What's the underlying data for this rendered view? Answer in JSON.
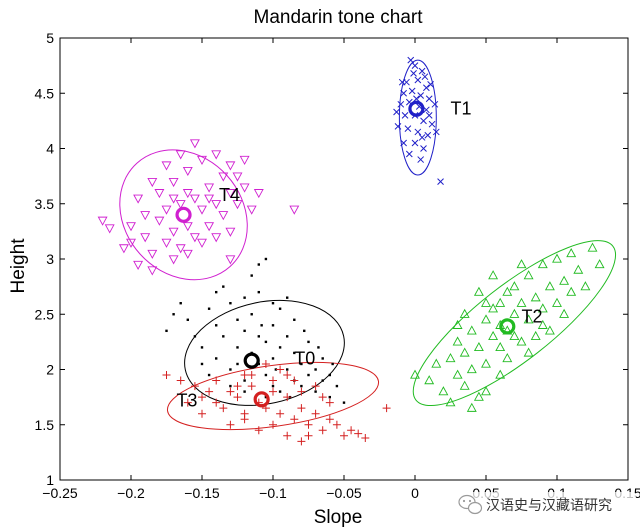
{
  "watermark": {
    "text": "汉语史与汉藏语研究"
  },
  "chart_data": {
    "type": "scatter",
    "title": "Mandarin tone chart",
    "xlabel": "Slope",
    "ylabel": "Height",
    "xlim": [
      -0.25,
      0.15
    ],
    "ylim": [
      1,
      5
    ],
    "xticks": [
      -0.25,
      -0.2,
      -0.15,
      -0.1,
      -0.05,
      0,
      0.05,
      0.1,
      0.15
    ],
    "xtick_labels": [
      "−0.25",
      "−0.2",
      "−0.15",
      "−0.1",
      "−0.05",
      "0",
      "0.05",
      "0.1",
      "0.15"
    ],
    "yticks": [
      1,
      1.5,
      2,
      2.5,
      3,
      3.5,
      4,
      4.5,
      5
    ],
    "ytick_labels": [
      "1",
      "1.5",
      "2",
      "2.5",
      "3",
      "3.5",
      "4",
      "4.5",
      "5"
    ],
    "grid": false,
    "series": [
      {
        "label": "T0",
        "marker": "dot",
        "color": "#000000",
        "centroid": [
          -0.115,
          2.08
        ],
        "ellipse": {
          "cx": -0.106,
          "cy": 2.15,
          "rx": 0.057,
          "ry": 0.46,
          "angle_deg": -12
        },
        "label_pos": [
          -0.085,
          2.1
        ],
        "points": [
          [
            -0.16,
            2.45
          ],
          [
            -0.155,
            2.3
          ],
          [
            -0.15,
            2.2
          ],
          [
            -0.145,
            2.55
          ],
          [
            -0.14,
            2.4
          ],
          [
            -0.14,
            2.1
          ],
          [
            -0.135,
            2.3
          ],
          [
            -0.13,
            2.0
          ],
          [
            -0.13,
            2.6
          ],
          [
            -0.125,
            2.2
          ],
          [
            -0.125,
            2.45
          ],
          [
            -0.12,
            2.35
          ],
          [
            -0.12,
            1.9
          ],
          [
            -0.115,
            2.5
          ],
          [
            -0.115,
            2.15
          ],
          [
            -0.11,
            2.3
          ],
          [
            -0.11,
            2.05
          ],
          [
            -0.11,
            2.7
          ],
          [
            -0.105,
            2.25
          ],
          [
            -0.105,
            1.95
          ],
          [
            -0.1,
            2.4
          ],
          [
            -0.1,
            2.1
          ],
          [
            -0.1,
            1.85
          ],
          [
            -0.095,
            2.2
          ],
          [
            -0.095,
            2.55
          ],
          [
            -0.09,
            2.0
          ],
          [
            -0.09,
            2.3
          ],
          [
            -0.085,
            1.9
          ],
          [
            -0.085,
            2.15
          ],
          [
            -0.08,
            1.85
          ],
          [
            -0.08,
            2.05
          ],
          [
            -0.075,
            1.95
          ],
          [
            -0.075,
            2.25
          ],
          [
            -0.07,
            1.8
          ],
          [
            -0.07,
            2.0
          ],
          [
            -0.065,
            1.9
          ],
          [
            -0.065,
            2.1
          ],
          [
            -0.06,
            1.75
          ],
          [
            -0.06,
            1.95
          ],
          [
            -0.055,
            1.85
          ],
          [
            -0.05,
            1.7
          ],
          [
            -0.115,
            2.85
          ],
          [
            -0.11,
            2.95
          ],
          [
            -0.105,
            3.0
          ],
          [
            -0.135,
            2.75
          ],
          [
            -0.17,
            2.5
          ],
          [
            -0.175,
            2.35
          ],
          [
            -0.165,
            2.6
          ],
          [
            -0.14,
            2.7
          ],
          [
            -0.12,
            2.65
          ],
          [
            -0.1,
            2.6
          ],
          [
            -0.09,
            2.65
          ],
          [
            -0.085,
            2.45
          ],
          [
            -0.095,
            1.8
          ],
          [
            -0.105,
            1.75
          ],
          [
            -0.12,
            1.8
          ],
          [
            -0.13,
            1.85
          ],
          [
            -0.145,
            1.95
          ],
          [
            -0.15,
            2.05
          ],
          [
            -0.125,
            2.05
          ],
          [
            -0.108,
            2.4
          ],
          [
            -0.098,
            2.0
          ],
          [
            -0.078,
            2.35
          ],
          [
            -0.068,
            2.2
          ],
          [
            -0.058,
            2.05
          ],
          [
            -0.088,
            1.75
          ]
        ]
      },
      {
        "label": "T1",
        "marker": "x",
        "color": "#2020c8",
        "centroid": [
          0.001,
          4.36
        ],
        "ellipse": {
          "cx": 0.002,
          "cy": 4.28,
          "rx": 0.013,
          "ry": 0.52,
          "angle_deg": 0
        },
        "label_pos": [
          0.025,
          4.36
        ],
        "points": [
          [
            -0.003,
            4.8
          ],
          [
            0.0,
            4.75
          ],
          [
            0.005,
            4.7
          ],
          [
            -0.006,
            4.6
          ],
          [
            0.002,
            4.62
          ],
          [
            0.008,
            4.55
          ],
          [
            -0.008,
            4.5
          ],
          [
            -0.002,
            4.52
          ],
          [
            0.004,
            4.48
          ],
          [
            0.01,
            4.45
          ],
          [
            -0.01,
            4.4
          ],
          [
            -0.004,
            4.42
          ],
          [
            0.003,
            4.38
          ],
          [
            0.008,
            4.35
          ],
          [
            -0.007,
            4.3
          ],
          [
            0.0,
            4.3
          ],
          [
            0.006,
            4.25
          ],
          [
            0.012,
            4.22
          ],
          [
            -0.012,
            4.2
          ],
          [
            -0.005,
            4.18
          ],
          [
            0.002,
            4.15
          ],
          [
            0.009,
            4.12
          ],
          [
            -0.008,
            4.05
          ],
          [
            0.0,
            4.05
          ],
          [
            0.006,
            4.0
          ],
          [
            -0.004,
            3.95
          ],
          [
            0.004,
            3.9
          ],
          [
            0.01,
            4.3
          ],
          [
            0.014,
            4.4
          ],
          [
            -0.009,
            4.6
          ],
          [
            0.007,
            4.65
          ],
          [
            0.015,
            4.15
          ],
          [
            0.018,
            3.7
          ],
          [
            -0.001,
            4.68
          ],
          [
            0.011,
            4.58
          ],
          [
            -0.013,
            4.33
          ],
          [
            0.001,
            4.45
          ],
          [
            0.005,
            4.1
          ]
        ]
      },
      {
        "label": "T2",
        "marker": "triangle-up",
        "color": "#22bb22",
        "centroid": [
          0.065,
          2.39
        ],
        "ellipse": {
          "cx": 0.07,
          "cy": 2.42,
          "rx": 0.088,
          "ry": 0.34,
          "angle_deg": -38
        },
        "label_pos": [
          0.075,
          2.48
        ],
        "points": [
          [
            0.0,
            1.95
          ],
          [
            0.01,
            1.9
          ],
          [
            0.015,
            2.05
          ],
          [
            0.02,
            1.8
          ],
          [
            0.025,
            2.1
          ],
          [
            0.03,
            1.95
          ],
          [
            0.03,
            2.25
          ],
          [
            0.035,
            1.85
          ],
          [
            0.035,
            2.15
          ],
          [
            0.04,
            2.0
          ],
          [
            0.04,
            2.35
          ],
          [
            0.045,
            1.75
          ],
          [
            0.045,
            2.2
          ],
          [
            0.05,
            2.45
          ],
          [
            0.05,
            2.05
          ],
          [
            0.055,
            2.3
          ],
          [
            0.055,
            2.55
          ],
          [
            0.06,
            1.95
          ],
          [
            0.06,
            2.2
          ],
          [
            0.06,
            2.6
          ],
          [
            0.065,
            2.35
          ],
          [
            0.065,
            2.1
          ],
          [
            0.07,
            2.5
          ],
          [
            0.07,
            2.75
          ],
          [
            0.075,
            2.25
          ],
          [
            0.075,
            2.6
          ],
          [
            0.08,
            2.45
          ],
          [
            0.08,
            2.85
          ],
          [
            0.085,
            2.3
          ],
          [
            0.085,
            2.65
          ],
          [
            0.09,
            2.55
          ],
          [
            0.09,
            2.95
          ],
          [
            0.095,
            2.75
          ],
          [
            0.1,
            2.6
          ],
          [
            0.1,
            3.0
          ],
          [
            0.105,
            2.8
          ],
          [
            0.11,
            2.7
          ],
          [
            0.11,
            3.05
          ],
          [
            0.115,
            2.9
          ],
          [
            0.12,
            2.75
          ],
          [
            0.125,
            3.1
          ],
          [
            0.13,
            2.95
          ],
          [
            0.045,
            2.7
          ],
          [
            0.055,
            2.85
          ],
          [
            0.095,
            2.35
          ],
          [
            0.105,
            2.5
          ],
          [
            0.035,
            2.5
          ],
          [
            0.025,
            1.7
          ],
          [
            0.04,
            1.65
          ],
          [
            0.05,
            1.8
          ],
          [
            0.06,
            2.4
          ],
          [
            0.07,
            2.3
          ],
          [
            0.08,
            2.15
          ],
          [
            0.05,
            2.6
          ],
          [
            0.075,
            2.95
          ],
          [
            0.09,
            2.4
          ],
          [
            0.065,
            2.7
          ],
          [
            0.03,
            2.4
          ]
        ]
      },
      {
        "label": "T3",
        "marker": "plus",
        "color": "#d42020",
        "centroid": [
          -0.108,
          1.73
        ],
        "ellipse": {
          "cx": -0.1,
          "cy": 1.76,
          "rx": 0.075,
          "ry": 0.275,
          "angle_deg": -8
        },
        "label_pos": [
          -0.168,
          1.72
        ],
        "points": [
          [
            -0.175,
            1.95
          ],
          [
            -0.165,
            1.9
          ],
          [
            -0.155,
            1.85
          ],
          [
            -0.15,
            1.75
          ],
          [
            -0.145,
            1.8
          ],
          [
            -0.14,
            1.7
          ],
          [
            -0.135,
            1.65
          ],
          [
            -0.13,
            1.8
          ],
          [
            -0.125,
            1.75
          ],
          [
            -0.12,
            1.6
          ],
          [
            -0.115,
            1.85
          ],
          [
            -0.11,
            1.7
          ],
          [
            -0.105,
            1.65
          ],
          [
            -0.1,
            1.8
          ],
          [
            -0.095,
            1.6
          ],
          [
            -0.09,
            1.75
          ],
          [
            -0.085,
            1.55
          ],
          [
            -0.08,
            1.65
          ],
          [
            -0.075,
            1.5
          ],
          [
            -0.07,
            1.6
          ],
          [
            -0.065,
            1.45
          ],
          [
            -0.06,
            1.55
          ],
          [
            -0.055,
            1.5
          ],
          [
            -0.05,
            1.4
          ],
          [
            -0.045,
            1.45
          ],
          [
            -0.04,
            1.42
          ],
          [
            -0.035,
            1.38
          ],
          [
            -0.13,
            1.5
          ],
          [
            -0.12,
            1.55
          ],
          [
            -0.11,
            1.45
          ],
          [
            -0.1,
            1.5
          ],
          [
            -0.09,
            1.4
          ],
          [
            -0.08,
            1.35
          ],
          [
            -0.14,
            1.9
          ],
          [
            -0.12,
            1.95
          ],
          [
            -0.1,
            1.9
          ],
          [
            -0.09,
            1.95
          ],
          [
            -0.08,
            1.8
          ],
          [
            -0.07,
            1.85
          ],
          [
            -0.06,
            1.7
          ],
          [
            -0.15,
            1.6
          ],
          [
            -0.16,
            1.7
          ],
          [
            -0.02,
            1.65
          ],
          [
            -0.115,
            1.95
          ],
          [
            -0.105,
            2.05
          ],
          [
            -0.095,
            2.0
          ],
          [
            -0.085,
            1.9
          ],
          [
            -0.125,
            1.85
          ],
          [
            -0.065,
            1.75
          ],
          [
            -0.075,
            1.4
          ]
        ]
      },
      {
        "label": "T4",
        "marker": "triangle-down",
        "color": "#d020d0",
        "centroid": [
          -0.163,
          3.4
        ],
        "ellipse": {
          "cx": -0.163,
          "cy": 3.4,
          "rx": 0.049,
          "ry": 0.53,
          "angle_deg": 48
        },
        "label_pos": [
          -0.138,
          3.58
        ],
        "points": [
          [
            -0.22,
            3.35
          ],
          [
            -0.215,
            3.28
          ],
          [
            -0.205,
            3.1
          ],
          [
            -0.2,
            3.3
          ],
          [
            -0.195,
            3.55
          ],
          [
            -0.19,
            3.2
          ],
          [
            -0.19,
            3.4
          ],
          [
            -0.185,
            3.05
          ],
          [
            -0.18,
            3.35
          ],
          [
            -0.18,
            3.6
          ],
          [
            -0.175,
            3.15
          ],
          [
            -0.175,
            3.45
          ],
          [
            -0.17,
            3.25
          ],
          [
            -0.17,
            3.7
          ],
          [
            -0.165,
            3.5
          ],
          [
            -0.165,
            3.1
          ],
          [
            -0.16,
            3.3
          ],
          [
            -0.16,
            3.8
          ],
          [
            -0.155,
            3.55
          ],
          [
            -0.155,
            3.2
          ],
          [
            -0.15,
            3.45
          ],
          [
            -0.15,
            3.9
          ],
          [
            -0.145,
            3.65
          ],
          [
            -0.145,
            3.3
          ],
          [
            -0.14,
            3.5
          ],
          [
            -0.14,
            3.95
          ],
          [
            -0.135,
            3.75
          ],
          [
            -0.135,
            3.4
          ],
          [
            -0.13,
            3.6
          ],
          [
            -0.13,
            3.85
          ],
          [
            -0.125,
            3.5
          ],
          [
            -0.125,
            3.75
          ],
          [
            -0.12,
            3.65
          ],
          [
            -0.115,
            3.45
          ],
          [
            -0.11,
            3.6
          ],
          [
            -0.185,
            3.7
          ],
          [
            -0.175,
            3.85
          ],
          [
            -0.165,
            3.95
          ],
          [
            -0.155,
            4.05
          ],
          [
            -0.2,
            3.15
          ],
          [
            -0.195,
            2.95
          ],
          [
            -0.185,
            2.9
          ],
          [
            -0.17,
            3.0
          ],
          [
            -0.16,
            3.05
          ],
          [
            -0.15,
            3.15
          ],
          [
            -0.14,
            3.2
          ],
          [
            -0.13,
            3.25
          ],
          [
            -0.085,
            3.45
          ],
          [
            -0.13,
            3.0
          ],
          [
            -0.145,
            3.55
          ],
          [
            -0.17,
            3.55
          ],
          [
            -0.16,
            3.6
          ],
          [
            -0.12,
            3.9
          ]
        ]
      }
    ]
  }
}
